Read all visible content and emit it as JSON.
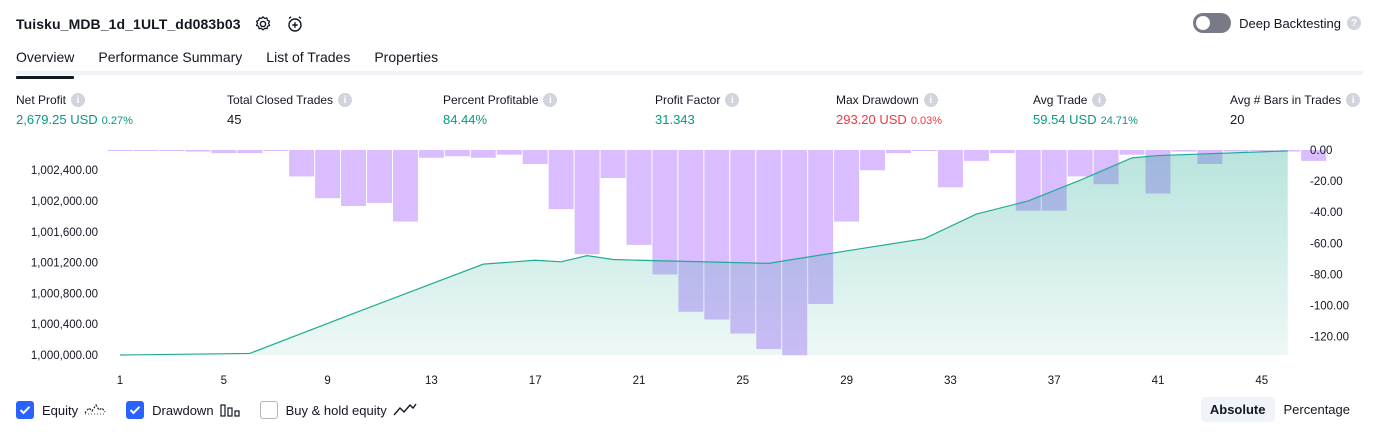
{
  "header": {
    "title": "Tuisku_MDB_1d_1ULT_dd083b03",
    "settings_icon": "gear-icon",
    "add_alert_icon": "alarm-plus-icon",
    "deep_backtesting_label": "Deep Backtesting",
    "deep_backtesting_enabled": false
  },
  "tabs": [
    {
      "label": "Overview",
      "active": true
    },
    {
      "label": "Performance Summary",
      "active": false
    },
    {
      "label": "List of Trades",
      "active": false
    },
    {
      "label": "Properties",
      "active": false
    }
  ],
  "stats": [
    {
      "label": "Net Profit",
      "value": "2,679.25 USD",
      "sub": "0.27%",
      "color": "#089981"
    },
    {
      "label": "Total Closed Trades",
      "value": "45",
      "sub": "",
      "color": "#131722"
    },
    {
      "label": "Percent Profitable",
      "value": "84.44%",
      "sub": "",
      "color": "#089981"
    },
    {
      "label": "Profit Factor",
      "value": "31.343",
      "sub": "",
      "color": "#089981"
    },
    {
      "label": "Max Drawdown",
      "value": "293.20 USD",
      "sub": "0.03%",
      "color": "#f23645"
    },
    {
      "label": "Avg Trade",
      "value": "59.54 USD",
      "sub": "24.71%",
      "color": "#089981"
    },
    {
      "label": "Avg # Bars in Trades",
      "value": "20",
      "sub": "",
      "color": "#131722"
    }
  ],
  "chart_data": {
    "type": "line",
    "x_ticks": [
      1,
      5,
      9,
      13,
      17,
      21,
      25,
      29,
      33,
      37,
      41,
      45
    ],
    "y_left_ticks": [
      "1,000,000.00",
      "1,000,400.00",
      "1,000,800.00",
      "1,001,200.00",
      "1,001,600.00",
      "1,002,000.00",
      "1,002,400.00"
    ],
    "y_left_range": [
      1000000,
      1002662
    ],
    "y_right_ticks": [
      "0.00",
      "-20.00",
      "-40.00",
      "-60.00",
      "-80.00",
      "-100.00",
      "-120.00"
    ],
    "y_right_range": [
      -131.8,
      0
    ],
    "series": [
      {
        "name": "Equity",
        "color": "#22ab94",
        "x": [
          1,
          6,
          10,
          15,
          17,
          18,
          19,
          20,
          21,
          26,
          27,
          30,
          32,
          34,
          36,
          38,
          40,
          41,
          46
        ],
        "values": [
          1000000,
          1000020,
          1000540,
          1001180,
          1001230,
          1001210,
          1001290,
          1001240,
          1001230,
          1001190,
          1001245,
          1001405,
          1001510,
          1001830,
          1002000,
          1002270,
          1002560,
          1002590,
          1002650
        ]
      },
      {
        "name": "Drawdown",
        "color": "#d2b2ff",
        "values": [
          0,
          0,
          0,
          -1,
          -2,
          -2,
          0,
          -17,
          -31,
          -36,
          -34,
          -46,
          -5,
          -4,
          -5,
          -3,
          -9,
          -38,
          -67,
          -18,
          -61,
          -80,
          -104,
          -109,
          -118,
          -128,
          -132,
          -99,
          -46,
          -13,
          -2,
          0,
          -24,
          -7,
          -2,
          -39,
          -39,
          -17,
          -22,
          -3,
          -28,
          -1,
          -9,
          -1,
          0,
          -1,
          -7
        ]
      }
    ]
  },
  "legend": {
    "equity_label": "Equity",
    "equity_checked": true,
    "drawdown_label": "Drawdown",
    "drawdown_checked": true,
    "buyhold_label": "Buy & hold equity",
    "buyhold_checked": false
  },
  "mode": {
    "absolute_label": "Absolute",
    "percentage_label": "Percentage",
    "selected": "Absolute"
  }
}
